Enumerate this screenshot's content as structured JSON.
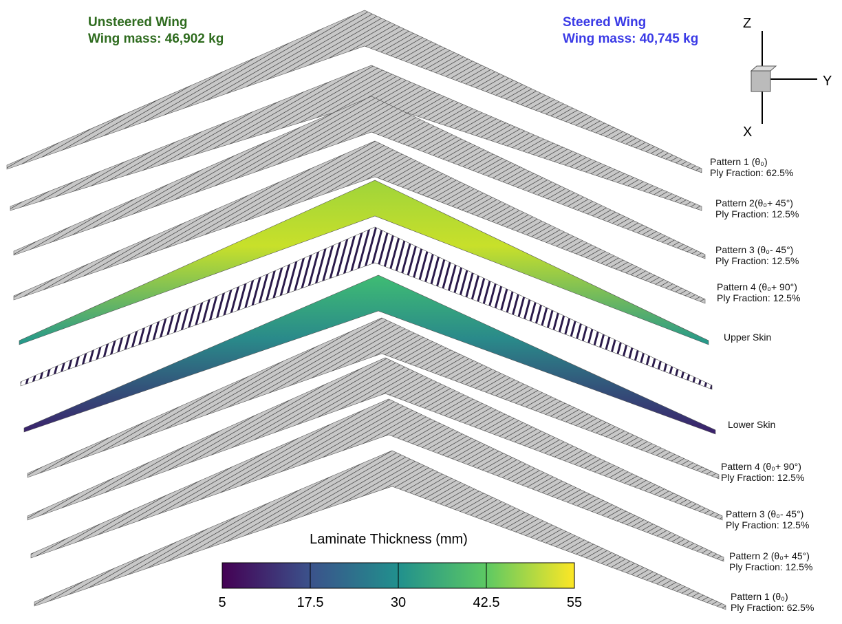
{
  "left_label": {
    "title": "Unsteered Wing",
    "mass": "Wing mass: 46,902 kg"
  },
  "right_label": {
    "title": "Steered Wing",
    "mass": "Wing mass: 40,745 kg"
  },
  "axes": {
    "z": "Z",
    "y": "Y",
    "x": "X"
  },
  "layers": [
    {
      "name": "Pattern 1 (θ₀)",
      "fraction": "Ply Fraction: 62.5%"
    },
    {
      "name": "Pattern 2(θ₀+ 45°)",
      "fraction": "Ply Fraction: 12.5%"
    },
    {
      "name": "Pattern 3 (θ₀- 45°)",
      "fraction": "Ply Fraction: 12.5%"
    },
    {
      "name": "Pattern 4 (θ₀+ 90°)",
      "fraction": "Ply Fraction: 12.5%"
    },
    {
      "name": "Upper Skin"
    },
    {
      "name": "Lower Skin"
    },
    {
      "name": "Pattern 4 (θ₀+ 90°)",
      "fraction": "Ply Fraction: 12.5%"
    },
    {
      "name": "Pattern 3 (θ₀- 45°)",
      "fraction": "Ply Fraction: 12.5%"
    },
    {
      "name": "Pattern 2 (θ₀+ 45°)",
      "fraction": "Ply Fraction: 12.5%"
    },
    {
      "name": "Pattern 1 (θ₀)",
      "fraction": "Ply Fraction: 62.5%"
    }
  ],
  "colorbar": {
    "title": "Laminate Thickness (mm)",
    "lim": [
      5,
      55
    ],
    "ticks": [
      5,
      17.5,
      30,
      42.5,
      55
    ]
  }
}
